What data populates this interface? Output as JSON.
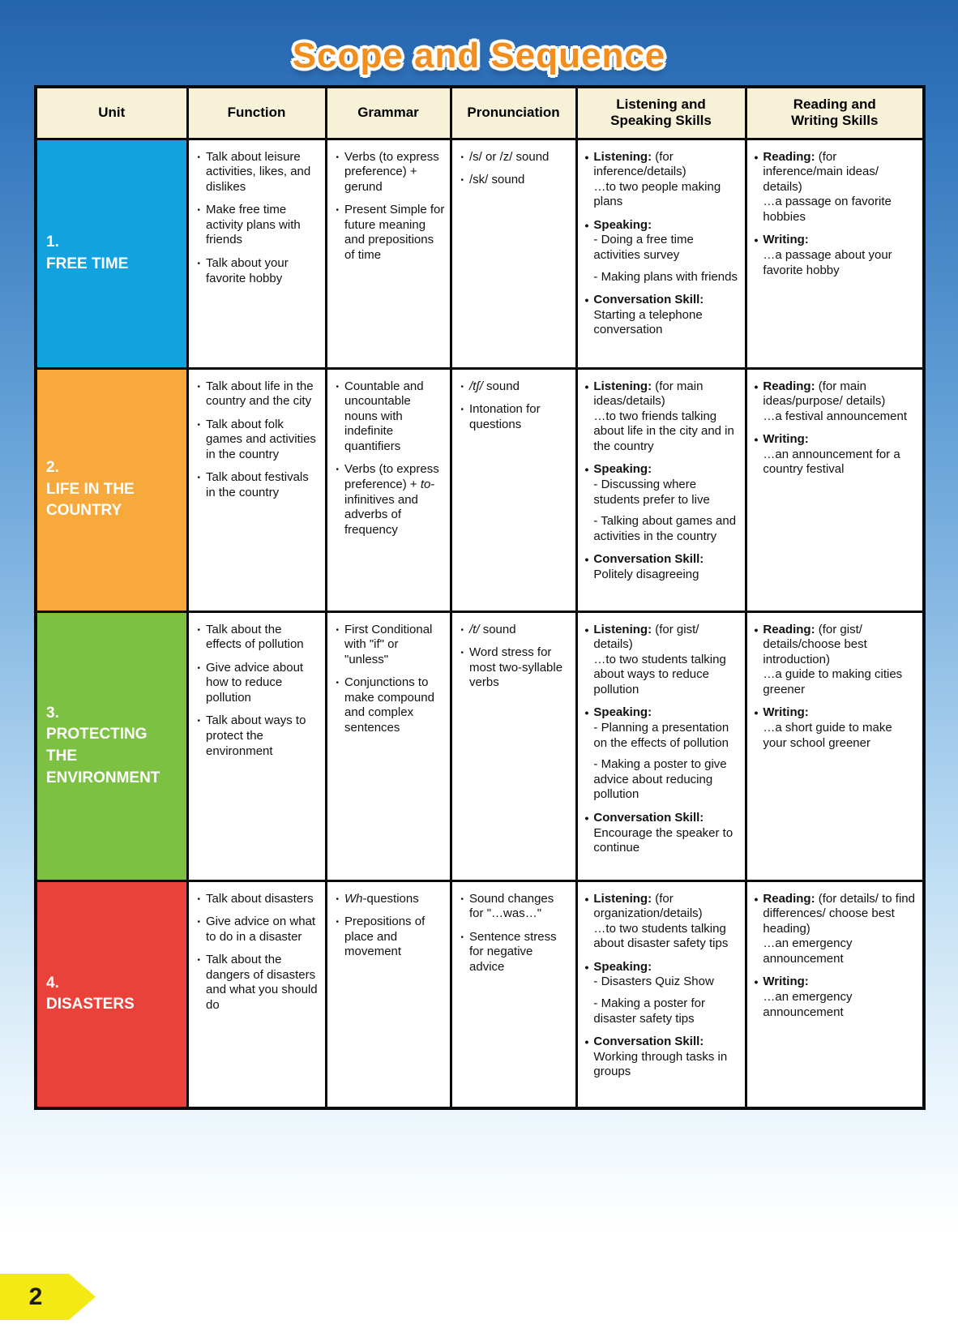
{
  "page": {
    "title": "Scope and Sequence",
    "page_number": "2"
  },
  "table": {
    "headers": [
      "Unit",
      "Function",
      "Grammar",
      "Pronunciation",
      "Listening and\nSpeaking Skills",
      "Reading and\nWriting Skills"
    ],
    "rows": [
      {
        "unit": {
          "number": "1.",
          "name": "FREE TIME",
          "color": "#12A2E0"
        },
        "function": [
          "Talk about leisure activities, likes, and dislikes",
          "Make free time activity plans with friends",
          "Talk about your favorite hobby"
        ],
        "grammar": [
          "Verbs (to express preference) + gerund",
          "Present Simple for future meaning and prepositions of time"
        ],
        "pronunciation": [
          "/s/ or /z/ sound",
          "/sk/ sound"
        ],
        "listening_speaking": [
          "**Listening:** (for inference/details)\n…to two people making plans",
          "**Speaking:**\n- Doing a free time activities survey\n- Making plans with friends",
          "**Conversation Skill:**\nStarting a telephone conversation"
        ],
        "reading_writing": [
          "**Reading:** (for inference/main ideas/ details)\n…a passage on favorite hobbies",
          "**Writing:**\n…a passage about your favorite hobby"
        ]
      },
      {
        "unit": {
          "number": "2.",
          "name": "LIFE IN THE COUNTRY",
          "color": "#F7A93C"
        },
        "function": [
          "Talk about life in the country and the city",
          "Talk about folk games and activities in the country",
          "Talk about festivals in the country"
        ],
        "grammar": [
          "Countable and uncountable nouns with indefinite quantifiers",
          "Verbs (to express preference) + _to_-infinitives and adverbs of frequency"
        ],
        "pronunciation": [
          "_/tʃ/_ sound",
          "Intonation for questions"
        ],
        "listening_speaking": [
          "**Listening:** (for main ideas/details)\n…to two friends talking about life in the city and in the country",
          "**Speaking:**\n- Discussing where students prefer to live\n- Talking about games and activities in the country",
          "**Conversation Skill:**\nPolitely disagreeing"
        ],
        "reading_writing": [
          "**Reading:** (for main ideas/purpose/ details)\n…a festival announcement",
          "**Writing:**\n…an announcement for a country festival"
        ]
      },
      {
        "unit": {
          "number": "3.",
          "name": "PROTECTING THE ENVIRONMENT",
          "color": "#7DC143"
        },
        "function": [
          "Talk about the effects of pollution",
          "Give advice about how to reduce pollution",
          "Talk about ways to protect the environment"
        ],
        "grammar": [
          "First Conditional with \"if\" or \"unless\"",
          "Conjunctions to make compound and complex sentences"
        ],
        "pronunciation": [
          "_/t/_ sound",
          "Word stress for most two-syllable verbs"
        ],
        "listening_speaking": [
          "**Listening:** (for gist/ details)\n…to two students talking about ways to reduce pollution",
          "**Speaking:**\n- Planning a presentation on the effects of pollution\n- Making a poster to give advice about reducing pollution",
          "**Conversation Skill:**\nEncourage the speaker to continue"
        ],
        "reading_writing": [
          "**Reading:** (for gist/ details/choose best introduction)\n…a guide to making cities greener",
          "**Writing:**\n…a short guide to make your school greener"
        ]
      },
      {
        "unit": {
          "number": "4.",
          "name": "DISASTERS",
          "color": "#E9423B"
        },
        "function": [
          "Talk about disasters",
          "Give advice on what to do in a disaster",
          "Talk about the dangers of disasters and what you should do"
        ],
        "grammar": [
          "_Wh_-questions",
          "Prepositions of place and movement"
        ],
        "pronunciation": [
          "Sound changes for \"…was…\"",
          "Sentence stress for negative advice"
        ],
        "listening_speaking": [
          "**Listening:** (for organization/details)\n…to two students talking about disaster safety tips",
          "**Speaking:**\n- Disasters Quiz Show\n- Making a poster for disaster safety tips",
          "**Conversation Skill:**\nWorking through tasks in groups"
        ],
        "reading_writing": [
          "**Reading:** (for details/ to find differences/ choose best heading)\n…an emergency announcement",
          "**Writing:**\n…an emergency announcement"
        ]
      }
    ]
  }
}
